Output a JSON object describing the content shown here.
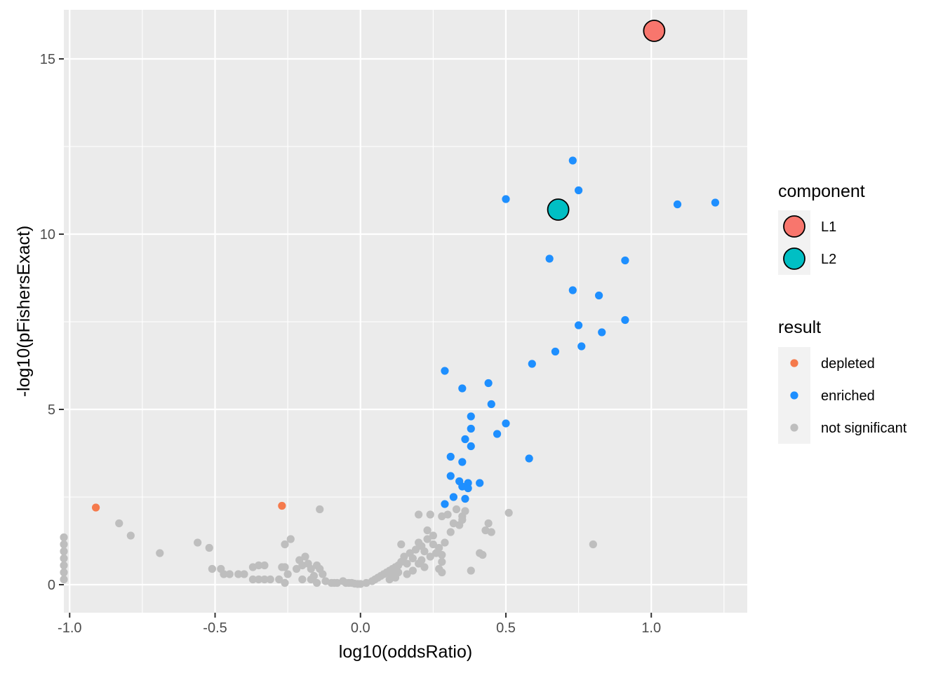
{
  "chart_data": {
    "type": "scatter",
    "xlabel": "log10(oddsRatio)",
    "ylabel": "-log10(pFishersExact)",
    "xlim": [
      -1.02,
      1.33
    ],
    "ylim": [
      -0.8,
      16.4
    ],
    "x_ticks": [
      {
        "value": -1.0,
        "label": "-1.0"
      },
      {
        "value": -0.5,
        "label": "-0.5"
      },
      {
        "value": 0.0,
        "label": "0.0"
      },
      {
        "value": 0.5,
        "label": "0.5"
      },
      {
        "value": 1.0,
        "label": "1.0"
      }
    ],
    "y_ticks": [
      {
        "value": 0,
        "label": "0"
      },
      {
        "value": 5,
        "label": "5"
      },
      {
        "value": 10,
        "label": "10"
      },
      {
        "value": 15,
        "label": "15"
      }
    ],
    "grid": true,
    "legend_position": "right",
    "legends": [
      {
        "title": "component",
        "items": [
          {
            "label": "L1",
            "color": "#F8766D"
          },
          {
            "label": "L2",
            "color": "#00BFC4"
          }
        ]
      },
      {
        "title": "result",
        "items": [
          {
            "label": "depleted",
            "color": "#F57A4C"
          },
          {
            "label": "enriched",
            "color": "#1E8FFF"
          },
          {
            "label": "not significant",
            "color": "#BEBEBE"
          }
        ]
      }
    ],
    "series": [
      {
        "name": "not significant",
        "color": "#BEBEBE",
        "points": [
          [
            -1.02,
            1.35
          ],
          [
            -1.02,
            1.15
          ],
          [
            -1.02,
            0.95
          ],
          [
            -1.02,
            0.75
          ],
          [
            -1.02,
            0.55
          ],
          [
            -1.02,
            0.35
          ],
          [
            -1.02,
            0.15
          ],
          [
            -0.83,
            1.75
          ],
          [
            -0.79,
            1.4
          ],
          [
            -0.69,
            0.9
          ],
          [
            -0.56,
            1.2
          ],
          [
            -0.52,
            1.05
          ],
          [
            -0.51,
            0.45
          ],
          [
            -0.48,
            0.45
          ],
          [
            -0.47,
            0.3
          ],
          [
            -0.45,
            0.3
          ],
          [
            -0.42,
            0.3
          ],
          [
            -0.4,
            0.3
          ],
          [
            -0.37,
            0.5
          ],
          [
            -0.35,
            0.55
          ],
          [
            -0.33,
            0.55
          ],
          [
            -0.37,
            0.15
          ],
          [
            -0.35,
            0.15
          ],
          [
            -0.33,
            0.15
          ],
          [
            -0.31,
            0.15
          ],
          [
            -0.28,
            0.15
          ],
          [
            -0.27,
            0.5
          ],
          [
            -0.26,
            0.5
          ],
          [
            -0.25,
            0.3
          ],
          [
            -0.26,
            1.15
          ],
          [
            -0.24,
            1.3
          ],
          [
            -0.26,
            0.05
          ],
          [
            -0.22,
            0.45
          ],
          [
            -0.2,
            0.55
          ],
          [
            -0.21,
            0.7
          ],
          [
            -0.19,
            0.8
          ],
          [
            -0.18,
            0.6
          ],
          [
            -0.17,
            0.45
          ],
          [
            -0.16,
            0.25
          ],
          [
            -0.15,
            0.55
          ],
          [
            -0.14,
            0.45
          ],
          [
            -0.13,
            0.3
          ],
          [
            -0.14,
            2.15
          ],
          [
            -0.12,
            0.1
          ],
          [
            -0.1,
            0.05
          ],
          [
            -0.09,
            0.05
          ],
          [
            -0.08,
            0.05
          ],
          [
            -0.06,
            0.1
          ],
          [
            -0.05,
            0.05
          ],
          [
            -0.04,
            0.05
          ],
          [
            -0.03,
            0.05
          ],
          [
            -0.02,
            0.03
          ],
          [
            -0.01,
            0.02
          ],
          [
            0.0,
            0.02
          ],
          [
            -0.2,
            0.15
          ],
          [
            -0.17,
            0.15
          ],
          [
            -0.15,
            0.05
          ],
          [
            0.02,
            0.05
          ],
          [
            0.04,
            0.1
          ],
          [
            0.05,
            0.15
          ],
          [
            0.06,
            0.2
          ],
          [
            0.07,
            0.25
          ],
          [
            0.08,
            0.3
          ],
          [
            0.09,
            0.35
          ],
          [
            0.1,
            0.4
          ],
          [
            0.11,
            0.45
          ],
          [
            0.12,
            0.5
          ],
          [
            0.13,
            0.55
          ],
          [
            0.14,
            0.65
          ],
          [
            0.13,
            0.35
          ],
          [
            0.11,
            0.25
          ],
          [
            0.1,
            0.15
          ],
          [
            0.15,
            0.8
          ],
          [
            0.16,
            0.6
          ],
          [
            0.17,
            0.9
          ],
          [
            0.18,
            0.75
          ],
          [
            0.19,
            1.0
          ],
          [
            0.2,
            1.2
          ],
          [
            0.21,
            1.1
          ],
          [
            0.22,
            0.95
          ],
          [
            0.23,
            1.3
          ],
          [
            0.24,
            0.8
          ],
          [
            0.25,
            1.15
          ],
          [
            0.26,
            0.9
          ],
          [
            0.27,
            1.05
          ],
          [
            0.28,
            0.85
          ],
          [
            0.2,
            0.6
          ],
          [
            0.21,
            0.7
          ],
          [
            0.22,
            0.5
          ],
          [
            0.16,
            0.3
          ],
          [
            0.18,
            0.4
          ],
          [
            0.12,
            0.2
          ],
          [
            0.14,
            1.15
          ],
          [
            0.2,
            2.0
          ],
          [
            0.23,
            1.55
          ],
          [
            0.24,
            2.0
          ],
          [
            0.25,
            1.4
          ],
          [
            0.28,
            1.95
          ],
          [
            0.29,
            1.2
          ],
          [
            0.3,
            2.0
          ],
          [
            0.31,
            1.5
          ],
          [
            0.32,
            1.75
          ],
          [
            0.33,
            2.15
          ],
          [
            0.34,
            1.7
          ],
          [
            0.35,
            1.95
          ],
          [
            0.36,
            2.1
          ],
          [
            0.35,
            1.85
          ],
          [
            0.27,
            0.45
          ],
          [
            0.28,
            0.65
          ],
          [
            0.28,
            0.35
          ],
          [
            0.41,
            0.9
          ],
          [
            0.43,
            1.55
          ],
          [
            0.44,
            1.75
          ],
          [
            0.45,
            1.5
          ],
          [
            0.42,
            0.85
          ],
          [
            0.38,
            0.4
          ],
          [
            0.51,
            2.05
          ],
          [
            0.8,
            1.15
          ]
        ]
      },
      {
        "name": "enriched",
        "color": "#1E8FFF",
        "points": [
          [
            0.5,
            11.0
          ],
          [
            0.73,
            12.1
          ],
          [
            0.75,
            11.25
          ],
          [
            1.09,
            10.85
          ],
          [
            1.22,
            10.9
          ],
          [
            0.65,
            9.3
          ],
          [
            0.91,
            9.25
          ],
          [
            0.73,
            8.4
          ],
          [
            0.82,
            8.25
          ],
          [
            0.91,
            7.55
          ],
          [
            0.75,
            7.4
          ],
          [
            0.83,
            7.2
          ],
          [
            0.76,
            6.8
          ],
          [
            0.67,
            6.65
          ],
          [
            0.59,
            6.3
          ],
          [
            0.29,
            6.1
          ],
          [
            0.35,
            5.6
          ],
          [
            0.44,
            5.75
          ],
          [
            0.45,
            5.15
          ],
          [
            0.38,
            4.8
          ],
          [
            0.38,
            4.45
          ],
          [
            0.5,
            4.6
          ],
          [
            0.47,
            4.3
          ],
          [
            0.36,
            4.15
          ],
          [
            0.38,
            3.95
          ],
          [
            0.31,
            3.65
          ],
          [
            0.35,
            3.5
          ],
          [
            0.58,
            3.6
          ],
          [
            0.31,
            3.1
          ],
          [
            0.34,
            2.95
          ],
          [
            0.37,
            2.9
          ],
          [
            0.41,
            2.9
          ],
          [
            0.35,
            2.8
          ],
          [
            0.37,
            2.75
          ],
          [
            0.32,
            2.5
          ],
          [
            0.36,
            2.45
          ],
          [
            0.29,
            2.3
          ]
        ]
      },
      {
        "name": "depleted",
        "color": "#F57A4C",
        "points": [
          [
            -0.91,
            2.2
          ],
          [
            -0.27,
            2.25
          ]
        ]
      },
      {
        "name": "L1",
        "color": "#F8766D",
        "highlight": true,
        "points": [
          [
            1.01,
            15.8
          ]
        ]
      },
      {
        "name": "L2",
        "color": "#00BFC4",
        "highlight": true,
        "points": [
          [
            0.68,
            10.7
          ]
        ]
      }
    ]
  }
}
